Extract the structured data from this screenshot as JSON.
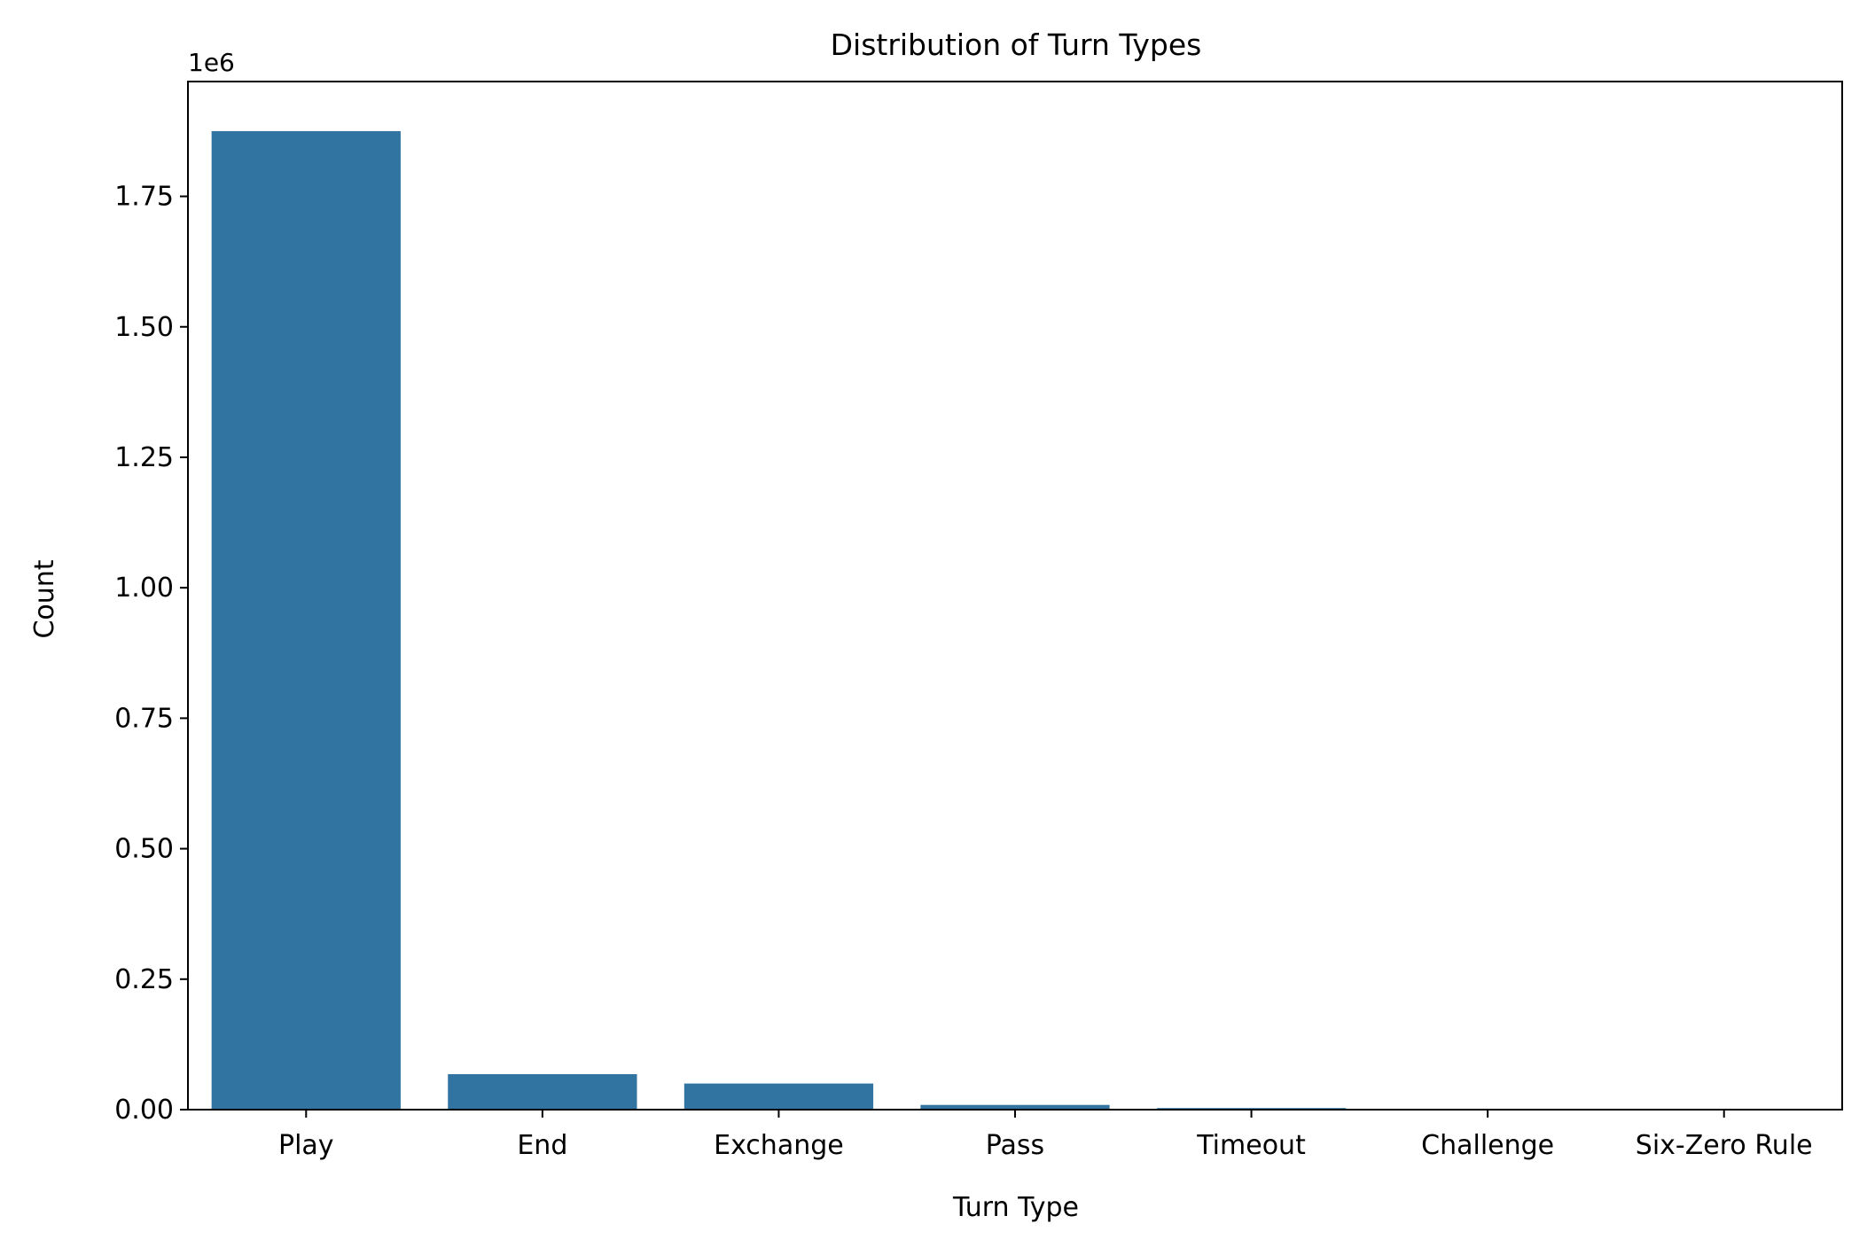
{
  "chart_data": {
    "type": "bar",
    "title": "Distribution of Turn Types",
    "xlabel": "Turn Type",
    "ylabel": "Count",
    "offset_label": "1e6",
    "categories": [
      "Play",
      "End",
      "Exchange",
      "Pass",
      "Timeout",
      "Challenge",
      "Six-Zero Rule"
    ],
    "values": [
      1875000,
      68000,
      50000,
      9000,
      3000,
      500,
      300
    ],
    "ylim": [
      0,
      1970000
    ],
    "yticks": [
      0,
      250000,
      500000,
      750000,
      1000000,
      1250000,
      1500000,
      1750000
    ],
    "ytick_labels": [
      "0.00",
      "0.25",
      "0.50",
      "0.75",
      "1.00",
      "1.25",
      "1.50",
      "1.75"
    ],
    "bar_color": "#3274a1",
    "grid": false,
    "legend": "none"
  }
}
